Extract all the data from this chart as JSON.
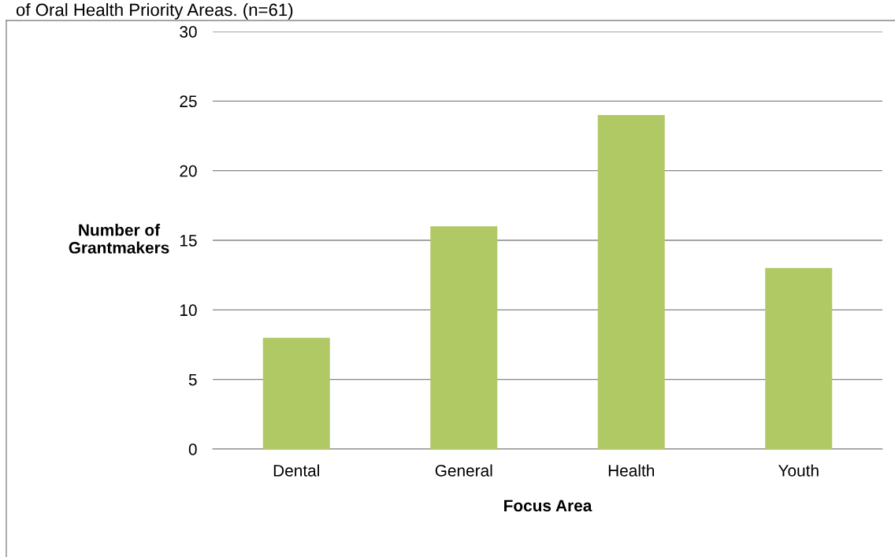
{
  "chart_data": {
    "type": "bar",
    "title": "of Oral Health Priority Areas. (n=61)",
    "xlabel": "Focus Area",
    "ylabel": "Number of\nGrantmakers",
    "categories": [
      "Dental",
      "General",
      "Health",
      "Youth"
    ],
    "values": [
      8,
      16,
      24,
      13
    ],
    "color": "#b0c965",
    "ylim": [
      0,
      30
    ],
    "yticks": [
      0,
      5,
      10,
      15,
      20,
      25,
      30
    ],
    "grid": "y",
    "legend": false
  }
}
